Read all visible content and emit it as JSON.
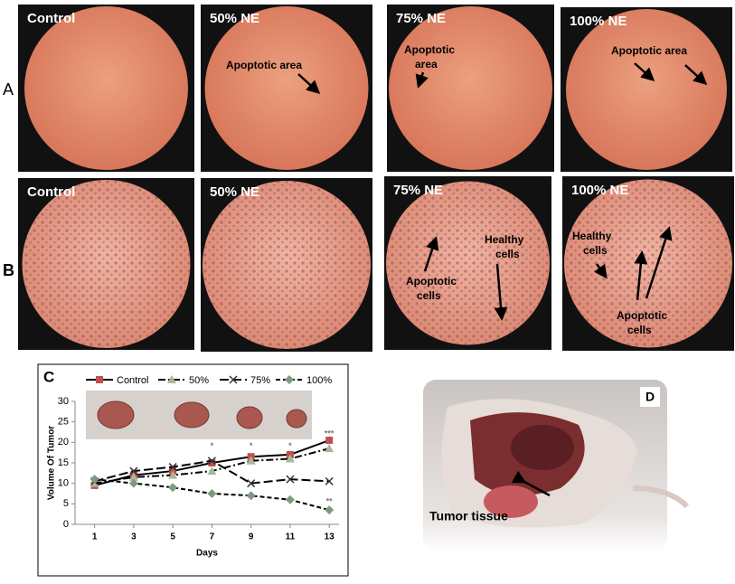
{
  "rows": [
    {
      "label": "A",
      "images": [
        {
          "title": "Control"
        },
        {
          "title": "50% NE",
          "notes": [
            [
              "Apoptotic area"
            ]
          ]
        },
        {
          "title": "75% NE",
          "notes": [
            [
              "Apoptotic",
              "area"
            ]
          ]
        },
        {
          "title": "100% NE",
          "notes": [
            [
              "Apoptotic area"
            ]
          ]
        }
      ]
    },
    {
      "label": "B",
      "images": [
        {
          "title": "Control"
        },
        {
          "title": "50% NE"
        },
        {
          "title": "75% NE",
          "notes": [
            [
              "Apoptotic",
              "cells"
            ],
            [
              "Healthy",
              "cells"
            ]
          ]
        },
        {
          "title": "100% NE",
          "notes": [
            [
              "Healthy",
              "cells"
            ],
            [
              "Apoptotic",
              "cells"
            ]
          ]
        }
      ]
    }
  ],
  "chart_data": {
    "type": "line",
    "panel_label": "C",
    "x_label": "Days",
    "y_label": "Volume Of Tumor",
    "x": [
      1,
      3,
      5,
      7,
      9,
      11,
      13
    ],
    "xlim": [
      0,
      13.5
    ],
    "xticks": [
      1,
      3,
      5,
      7,
      9,
      11,
      13
    ],
    "ylim": [
      0,
      30
    ],
    "yticks": [
      0,
      5,
      10,
      15,
      20,
      25,
      30
    ],
    "series": [
      {
        "name": "Control",
        "color": "#c0504d",
        "line": "solid",
        "marker": "square",
        "values": [
          9.5,
          12,
          13,
          15,
          16.5,
          17,
          20.5
        ]
      },
      {
        "name": "50%",
        "color": "#a9b89a",
        "line": "dashdot",
        "marker": "triangle",
        "values": [
          10,
          11.5,
          12,
          13,
          15.5,
          16,
          18.5
        ]
      },
      {
        "name": "75%",
        "color": "#333333",
        "line": "longdash",
        "marker": "cross",
        "values": [
          10.5,
          13,
          14,
          15.5,
          10,
          11,
          10.5
        ]
      },
      {
        "name": "100%",
        "color": "#7f9a80",
        "line": "dash",
        "marker": "diamond",
        "values": [
          11,
          10,
          9,
          7.5,
          7,
          6,
          3.5
        ]
      }
    ],
    "annotations": [
      {
        "text": "*",
        "x": 7,
        "y": 19
      },
      {
        "text": "*",
        "x": 9,
        "y": 19
      },
      {
        "text": "*",
        "x": 11,
        "y": 19
      },
      {
        "text": "***",
        "x": 13,
        "y": 22
      },
      {
        "text": "**",
        "x": 13,
        "y": 5.5
      }
    ]
  },
  "photo": {
    "label": "D",
    "caption": "Tumor tissue"
  }
}
